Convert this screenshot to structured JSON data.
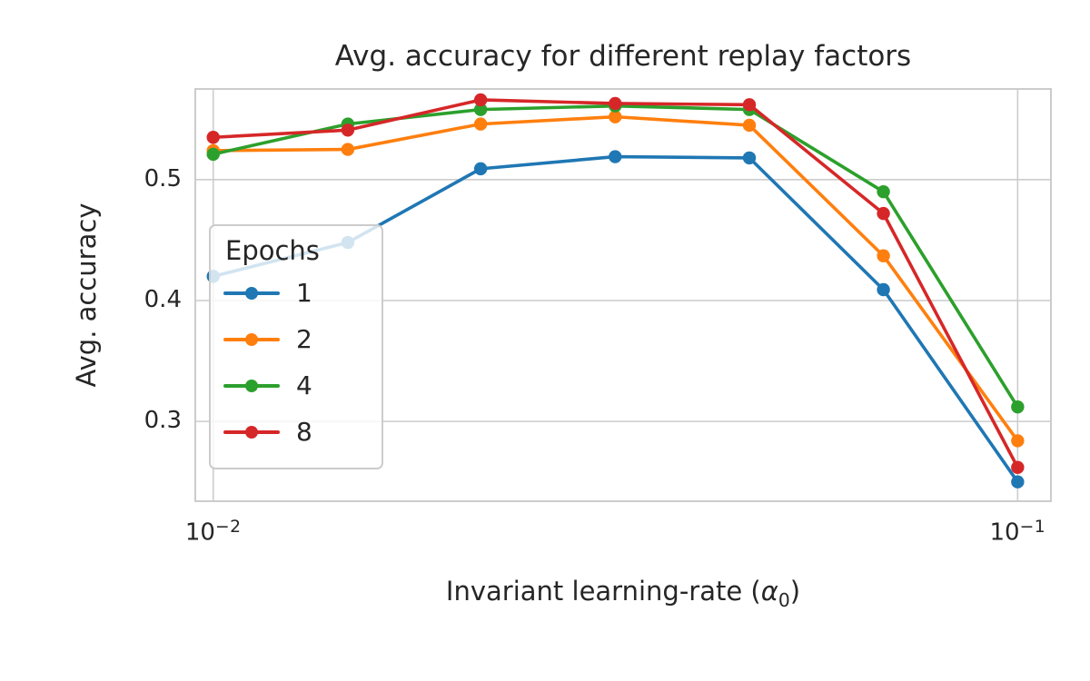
{
  "chart_data": {
    "type": "line",
    "title": "Avg. accuracy for different replay factors",
    "xlabel": "Invariant learning-rate (α₀)",
    "xlabel_parts": {
      "prefix": "Invariant learning-rate (",
      "alpha": "α",
      "subscript": "0",
      "suffix": ")"
    },
    "ylabel": "Avg. accuracy",
    "x_scale": "log",
    "grid": true,
    "x": [
      0.01,
      0.0147,
      0.0215,
      0.0316,
      0.0464,
      0.0681,
      0.1
    ],
    "series": [
      {
        "name": "1",
        "color": "#1f77b4",
        "values": [
          0.42,
          0.448,
          0.509,
          0.519,
          0.518,
          0.409,
          0.25
        ]
      },
      {
        "name": "2",
        "color": "#ff7f0e",
        "values": [
          0.524,
          0.525,
          0.546,
          0.552,
          0.545,
          0.437,
          0.284
        ]
      },
      {
        "name": "4",
        "color": "#2ca02c",
        "values": [
          0.521,
          0.546,
          0.558,
          0.561,
          0.558,
          0.49,
          0.312
        ]
      },
      {
        "name": "8",
        "color": "#d62728",
        "values": [
          0.535,
          0.541,
          0.566,
          0.563,
          0.562,
          0.472,
          0.262
        ]
      }
    ],
    "legend_title": "Epochs",
    "legend_position": "center left",
    "xlim": [
      0.0095,
      0.11
    ],
    "ylim": [
      0.234,
      0.575
    ],
    "yticks": [
      0.3,
      0.4,
      0.5
    ],
    "xticks": [
      {
        "value": 0.01,
        "base": "10",
        "exp": "−2"
      },
      {
        "value": 0.1,
        "base": "10",
        "exp": "−1"
      }
    ],
    "grid_color": "#cccccc",
    "axes_edge_color": "#cccccc",
    "text_color": "#262626",
    "background": "#ffffff"
  }
}
